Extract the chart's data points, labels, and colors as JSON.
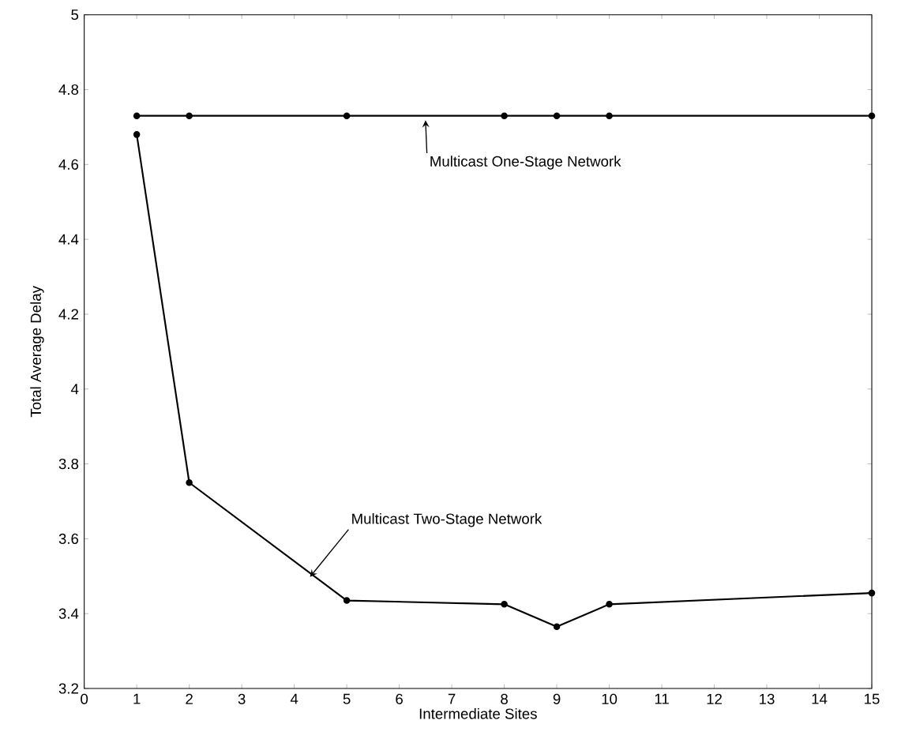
{
  "chart_data": {
    "type": "line",
    "xlabel": "Intermediate Sites",
    "ylabel": "Total Average Delay",
    "x": [
      1,
      2,
      5,
      8,
      9,
      10,
      15
    ],
    "series": [
      {
        "color": "#000000",
        "values": [
          4.73,
          4.73,
          4.73,
          4.73,
          4.73,
          4.73,
          4.73
        ]
      },
      {
        "color": "#000000",
        "values": [
          4.68,
          3.75,
          3.435,
          3.425,
          3.365,
          3.425,
          3.455
        ]
      }
    ],
    "annotations": [
      {
        "text": "Multicast One-Stage Network",
        "x": 6.5,
        "y": 4.73
      },
      {
        "text": "Multicast Two-Stage Network",
        "x": 4.3,
        "y": 3.51
      }
    ],
    "xlim": [
      0,
      15
    ],
    "xticks": [
      0,
      1,
      2,
      3,
      4,
      5,
      6,
      7,
      8,
      9,
      10,
      11,
      12,
      13,
      14,
      15
    ],
    "ylim": [
      3.2,
      5
    ],
    "yticks": [
      3.2,
      3.4,
      3.6,
      3.8,
      4,
      4.2,
      4.4,
      4.6,
      4.8,
      5
    ],
    "grid": false,
    "legend": false,
    "marker": "circle",
    "line_style": "solid"
  }
}
